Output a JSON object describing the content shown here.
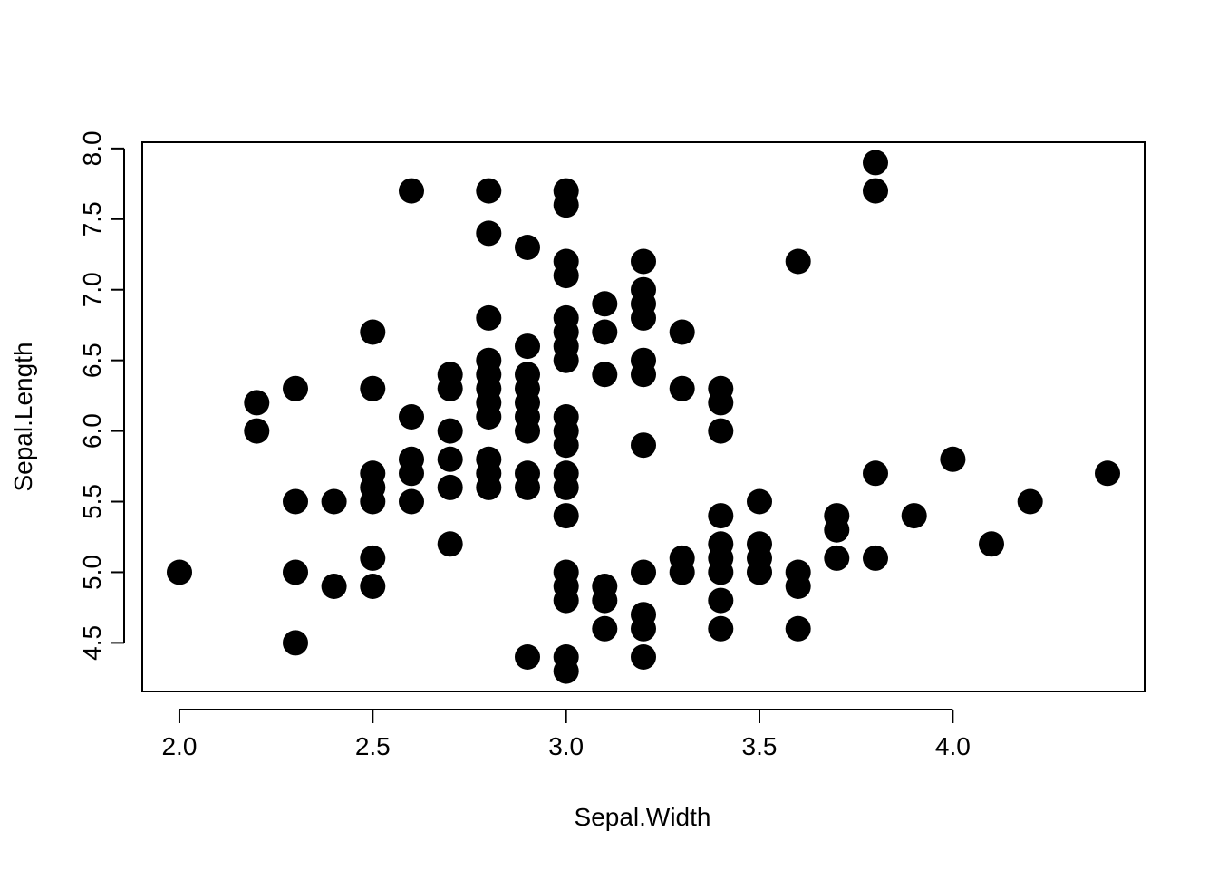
{
  "chart_data": {
    "type": "scatter",
    "title": "",
    "xlabel": "Sepal.Width",
    "ylabel": "Sepal.Length",
    "xlim": [
      1.904,
      4.496
    ],
    "ylim": [
      4.156,
      8.044
    ],
    "x_ticks": [
      2.0,
      2.5,
      3.0,
      3.5,
      4.0
    ],
    "y_ticks": [
      4.5,
      5.0,
      5.5,
      6.0,
      6.5,
      7.0,
      7.5,
      8.0
    ],
    "x_tick_labels": [
      "2.0",
      "2.5",
      "3.0",
      "3.5",
      "4.0"
    ],
    "y_tick_labels": [
      "4.5",
      "5.0",
      "5.5",
      "6.0",
      "6.5",
      "7.0",
      "7.5",
      "8.0"
    ],
    "grid": false,
    "point_color": "#000000",
    "series": [
      {
        "points": [
          [
            2.0,
            5.0
          ],
          [
            2.2,
            6.0
          ],
          [
            2.2,
            6.2
          ],
          [
            2.3,
            4.5
          ],
          [
            2.3,
            5.0
          ],
          [
            2.3,
            5.5
          ],
          [
            2.3,
            6.3
          ],
          [
            2.4,
            4.9
          ],
          [
            2.4,
            5.5
          ],
          [
            2.5,
            4.9
          ],
          [
            2.5,
            5.1
          ],
          [
            2.5,
            5.5
          ],
          [
            2.5,
            5.6
          ],
          [
            2.5,
            5.7
          ],
          [
            2.5,
            6.3
          ],
          [
            2.5,
            6.7
          ],
          [
            2.6,
            5.5
          ],
          [
            2.6,
            5.7
          ],
          [
            2.6,
            5.8
          ],
          [
            2.6,
            6.1
          ],
          [
            2.6,
            7.7
          ],
          [
            2.7,
            5.2
          ],
          [
            2.7,
            5.6
          ],
          [
            2.7,
            5.8
          ],
          [
            2.7,
            6.0
          ],
          [
            2.7,
            6.3
          ],
          [
            2.7,
            6.4
          ],
          [
            2.8,
            5.6
          ],
          [
            2.8,
            5.7
          ],
          [
            2.8,
            5.8
          ],
          [
            2.8,
            6.1
          ],
          [
            2.8,
            6.2
          ],
          [
            2.8,
            6.3
          ],
          [
            2.8,
            6.4
          ],
          [
            2.8,
            6.5
          ],
          [
            2.8,
            6.8
          ],
          [
            2.8,
            7.4
          ],
          [
            2.8,
            7.7
          ],
          [
            2.9,
            4.4
          ],
          [
            2.9,
            5.6
          ],
          [
            2.9,
            5.7
          ],
          [
            2.9,
            6.0
          ],
          [
            2.9,
            6.1
          ],
          [
            2.9,
            6.2
          ],
          [
            2.9,
            6.3
          ],
          [
            2.9,
            6.4
          ],
          [
            2.9,
            6.6
          ],
          [
            2.9,
            7.3
          ],
          [
            3.0,
            4.3
          ],
          [
            3.0,
            4.4
          ],
          [
            3.0,
            4.8
          ],
          [
            3.0,
            4.9
          ],
          [
            3.0,
            5.0
          ],
          [
            3.0,
            5.4
          ],
          [
            3.0,
            5.6
          ],
          [
            3.0,
            5.7
          ],
          [
            3.0,
            5.9
          ],
          [
            3.0,
            6.0
          ],
          [
            3.0,
            6.1
          ],
          [
            3.0,
            6.5
          ],
          [
            3.0,
            6.6
          ],
          [
            3.0,
            6.7
          ],
          [
            3.0,
            6.8
          ],
          [
            3.0,
            7.1
          ],
          [
            3.0,
            7.2
          ],
          [
            3.0,
            7.6
          ],
          [
            3.0,
            7.7
          ],
          [
            3.1,
            4.6
          ],
          [
            3.1,
            4.8
          ],
          [
            3.1,
            4.9
          ],
          [
            3.1,
            6.4
          ],
          [
            3.1,
            6.7
          ],
          [
            3.1,
            6.9
          ],
          [
            3.2,
            4.4
          ],
          [
            3.2,
            4.6
          ],
          [
            3.2,
            4.7
          ],
          [
            3.2,
            5.0
          ],
          [
            3.2,
            5.9
          ],
          [
            3.2,
            6.4
          ],
          [
            3.2,
            6.5
          ],
          [
            3.2,
            6.8
          ],
          [
            3.2,
            6.9
          ],
          [
            3.2,
            7.0
          ],
          [
            3.2,
            7.2
          ],
          [
            3.3,
            5.0
          ],
          [
            3.3,
            5.1
          ],
          [
            3.3,
            6.3
          ],
          [
            3.3,
            6.7
          ],
          [
            3.4,
            4.6
          ],
          [
            3.4,
            4.8
          ],
          [
            3.4,
            5.0
          ],
          [
            3.4,
            5.1
          ],
          [
            3.4,
            5.2
          ],
          [
            3.4,
            5.4
          ],
          [
            3.4,
            6.0
          ],
          [
            3.4,
            6.2
          ],
          [
            3.4,
            6.3
          ],
          [
            3.5,
            5.0
          ],
          [
            3.5,
            5.1
          ],
          [
            3.5,
            5.2
          ],
          [
            3.5,
            5.5
          ],
          [
            3.6,
            4.6
          ],
          [
            3.6,
            4.9
          ],
          [
            3.6,
            5.0
          ],
          [
            3.6,
            7.2
          ],
          [
            3.7,
            5.1
          ],
          [
            3.7,
            5.3
          ],
          [
            3.7,
            5.4
          ],
          [
            3.8,
            5.1
          ],
          [
            3.8,
            5.7
          ],
          [
            3.8,
            7.7
          ],
          [
            3.8,
            7.9
          ],
          [
            3.9,
            5.4
          ],
          [
            4.0,
            5.8
          ],
          [
            4.1,
            5.2
          ],
          [
            4.2,
            5.5
          ],
          [
            4.4,
            5.7
          ]
        ]
      }
    ]
  }
}
